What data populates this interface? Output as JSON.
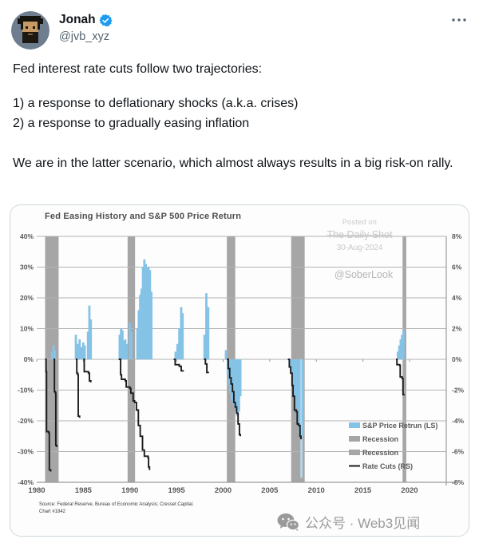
{
  "tweet": {
    "author": {
      "name": "Jonah",
      "handle": "@jvb_xyz"
    },
    "body": {
      "p1": "Fed interest rate cuts follow two trajectories:",
      "list_line1": "1) a response to deflationary shocks (a.k.a. crises)",
      "list_line2": "2) a response to gradually easing inflation",
      "p2": "We are in the latter scenario, which almost always results in a big risk-on rally."
    }
  },
  "watermarks": {
    "posted_on": "Posted on",
    "source_name": "The Daily Shot",
    "date": "30-Aug-2024",
    "handle": "@SoberLook",
    "wechat": "公众号 · Web3见闻"
  },
  "chart_data": {
    "type": "bar",
    "title": "Fed Easing History and S&P 500 Price Return",
    "x_range": [
      1980,
      2024
    ],
    "x_ticks": [
      1980,
      1985,
      1990,
      1995,
      2000,
      2005,
      2010,
      2015,
      2020
    ],
    "left_axis": {
      "unit": "S&P 500 price return (LS)",
      "ticks": [
        "40%",
        "30%",
        "20%",
        "10%",
        "0%",
        "-10%",
        "-20%",
        "-30%",
        "-40%"
      ],
      "values": [
        40,
        30,
        20,
        10,
        0,
        -10,
        -20,
        -30,
        -40
      ]
    },
    "right_axis": {
      "unit": "cumulative rate cuts (RS)",
      "ticks": [
        "8%",
        "6%",
        "4%",
        "2%",
        "0%",
        "-2%",
        "-4%",
        "-6%",
        "-8%"
      ],
      "values": [
        8,
        6,
        4,
        2,
        0,
        -2,
        -4,
        -6,
        -8
      ]
    },
    "legend": [
      {
        "label": "S&P Price Retrun (LS)",
        "type": "bar",
        "color": "#84c2e6"
      },
      {
        "label": "Recession",
        "type": "band",
        "color": "#a6a6a6"
      },
      {
        "label": "Recession",
        "type": "band",
        "color": "#a6a6a6"
      },
      {
        "label": "Rate Cuts (RS)",
        "type": "line",
        "color": "#1b1b1d"
      }
    ],
    "colors": {
      "bar": "#84c2e6",
      "bar_muted": "#b3d7eb",
      "band": "#a6a6a6",
      "line": "#1b1b1d",
      "grid": "#b3b3b3",
      "axis_text": "#58595b"
    },
    "recession_bands": [
      [
        1980.9,
        1982.35
      ],
      [
        1989.75,
        1990.55
      ],
      [
        2000.4,
        2001.3
      ],
      [
        2007.3,
        2008.75
      ],
      [
        2019.25,
        2019.65
      ]
    ],
    "sp_return_bars": [
      [
        1981.65,
        2.5
      ],
      [
        1981.8,
        4.5
      ],
      [
        1981.95,
        3
      ],
      [
        1984.2,
        8
      ],
      [
        1984.4,
        5
      ],
      [
        1984.6,
        6.5
      ],
      [
        1984.8,
        4
      ],
      [
        1985.0,
        5.5
      ],
      [
        1985.15,
        4.5
      ],
      [
        1985.5,
        9
      ],
      [
        1985.65,
        17.5
      ],
      [
        1985.8,
        13
      ],
      [
        1988.9,
        8
      ],
      [
        1989.05,
        10
      ],
      [
        1989.2,
        9.5
      ],
      [
        1989.35,
        6
      ],
      [
        1989.5,
        6.5
      ],
      [
        1989.65,
        5
      ],
      [
        1990.0,
        12
      ],
      [
        1990.15,
        9
      ],
      [
        1990.8,
        10
      ],
      [
        1990.95,
        16
      ],
      [
        1991.1,
        21
      ],
      [
        1991.25,
        23
      ],
      [
        1991.4,
        30
      ],
      [
        1991.55,
        32.5
      ],
      [
        1991.7,
        31
      ],
      [
        1991.85,
        30
      ],
      [
        1992.0,
        30
      ],
      [
        1992.15,
        29
      ],
      [
        1992.3,
        22
      ],
      [
        1994.9,
        2.5
      ],
      [
        1995.1,
        5
      ],
      [
        1995.3,
        10
      ],
      [
        1995.5,
        17
      ],
      [
        1995.65,
        15
      ],
      [
        1998.0,
        8
      ],
      [
        1998.2,
        21.5
      ],
      [
        1998.4,
        17
      ],
      [
        2000.3,
        3
      ],
      [
        2000.5,
        -5
      ],
      [
        2000.65,
        -8.5
      ],
      [
        2000.8,
        -11
      ],
      [
        2000.95,
        -13.5
      ],
      [
        2001.1,
        -14.5
      ],
      [
        2001.25,
        -15.5
      ],
      [
        2001.4,
        -17
      ],
      [
        2001.55,
        -18.5
      ],
      [
        2001.7,
        -17
      ],
      [
        2001.85,
        -12
      ],
      [
        2007.3,
        -4
      ],
      [
        2007.5,
        -8
      ],
      [
        2007.7,
        -12
      ],
      [
        2007.9,
        -16
      ],
      [
        2008.05,
        -20
      ],
      [
        2008.2,
        -24
      ],
      [
        2008.4,
        -38.5,
        "muted"
      ],
      [
        2008.55,
        -25
      ],
      [
        2018.75,
        2.5
      ],
      [
        2018.9,
        4.5
      ],
      [
        2019.05,
        6.5
      ],
      [
        2019.2,
        8
      ],
      [
        2019.35,
        9.5
      ]
    ],
    "rate_cut_segments_rs": [
      [
        [
          1980.9,
          0
        ],
        [
          1981.0,
          -0.8
        ],
        [
          1981.05,
          -4.7
        ],
        [
          1981.3,
          -4.8
        ],
        [
          1981.35,
          -7.2
        ],
        [
          1981.5,
          -7.3
        ]
      ],
      [
        [
          1981.8,
          0
        ],
        [
          1981.9,
          -2.1
        ],
        [
          1982.0,
          -2.2
        ],
        [
          1982.05,
          -5.6
        ],
        [
          1982.15,
          -5.7
        ]
      ],
      [
        [
          1984.2,
          0
        ],
        [
          1984.3,
          -0.9
        ],
        [
          1984.4,
          -1.0
        ],
        [
          1984.45,
          -3.7
        ],
        [
          1984.6,
          -3.8
        ]
      ],
      [
        [
          1985.0,
          0
        ],
        [
          1985.1,
          -0.8
        ],
        [
          1985.55,
          -0.9
        ],
        [
          1985.65,
          -1.4
        ],
        [
          1985.8,
          -1.5
        ]
      ],
      [
        [
          1988.8,
          0
        ],
        [
          1989.0,
          -1.0
        ],
        [
          1989.1,
          -1.3
        ],
        [
          1989.5,
          -1.4
        ],
        [
          1989.6,
          -1.8
        ],
        [
          1990.0,
          -1.9
        ],
        [
          1990.1,
          -2.2
        ],
        [
          1990.35,
          -2.7
        ],
        [
          1990.5,
          -2.8
        ],
        [
          1990.7,
          -3.3
        ],
        [
          1990.9,
          -4.3
        ],
        [
          1991.1,
          -5.0
        ],
        [
          1991.35,
          -5.9
        ],
        [
          1991.55,
          -6.3
        ],
        [
          1991.95,
          -6.4
        ],
        [
          1992.0,
          -7.0
        ],
        [
          1992.1,
          -7.2
        ]
      ],
      [
        [
          1994.7,
          0
        ],
        [
          1994.85,
          -0.35
        ],
        [
          1995.3,
          -0.45
        ],
        [
          1995.5,
          -0.75
        ],
        [
          1995.7,
          -0.8
        ]
      ],
      [
        [
          1997.95,
          0
        ],
        [
          1998.1,
          -0.3
        ],
        [
          1998.25,
          -0.85
        ],
        [
          1998.4,
          -0.9
        ]
      ],
      [
        [
          2000.4,
          0
        ],
        [
          2000.55,
          -0.6
        ],
        [
          2000.7,
          -1.2
        ],
        [
          2000.85,
          -1.6
        ],
        [
          2001.0,
          -2.1
        ],
        [
          2001.15,
          -2.8
        ],
        [
          2001.3,
          -3.1
        ],
        [
          2001.45,
          -3.5
        ],
        [
          2001.6,
          -4.2
        ],
        [
          2001.75,
          -4.9
        ],
        [
          2001.85,
          -5.0
        ]
      ],
      [
        [
          2006.95,
          0
        ],
        [
          2007.1,
          -0.5
        ],
        [
          2007.25,
          -0.9
        ],
        [
          2007.4,
          -1.7
        ],
        [
          2007.5,
          -2.4
        ],
        [
          2007.65,
          -3.3
        ],
        [
          2007.85,
          -3.4
        ],
        [
          2007.95,
          -4.2
        ],
        [
          2008.1,
          -4.3
        ],
        [
          2008.25,
          -5.0
        ],
        [
          2008.35,
          -5.2
        ]
      ],
      [
        [
          2018.55,
          0
        ],
        [
          2018.65,
          -0.35
        ],
        [
          2018.95,
          -0.4
        ],
        [
          2019.0,
          -1.15
        ],
        [
          2019.2,
          -1.25
        ],
        [
          2019.3,
          -2.3
        ],
        [
          2019.4,
          -2.35
        ]
      ]
    ],
    "source_note_line1": "Source: Federal Reserve, Bureau of Economic Analysis; Cresset Capital.",
    "source_note_line2": "Chart #1842"
  }
}
